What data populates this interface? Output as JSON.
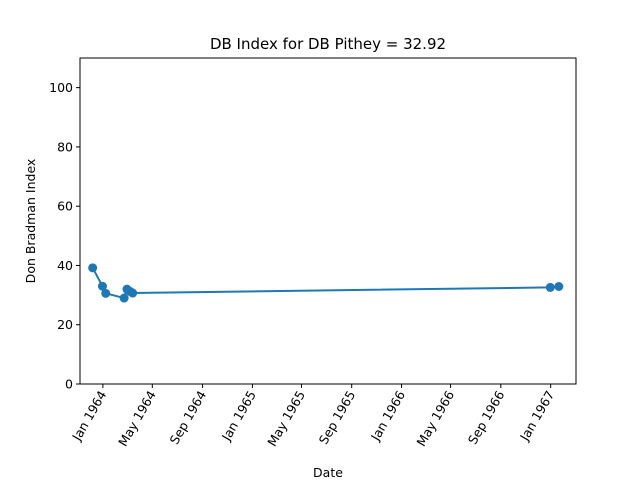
{
  "chart_data": {
    "type": "line",
    "title": "DB Index for DB Pithey = 32.92",
    "xlabel": "Date",
    "ylabel": "Don Bradman Index",
    "xlim": [
      "1963-11-06",
      "1967-03-04"
    ],
    "ylim": [
      0,
      110
    ],
    "x_ticks": [
      {
        "label": "Jan 1964",
        "date": "1964-01-01"
      },
      {
        "label": "May 1964",
        "date": "1964-05-01"
      },
      {
        "label": "Sep 1964",
        "date": "1964-09-01"
      },
      {
        "label": "Jan 1965",
        "date": "1965-01-01"
      },
      {
        "label": "May 1965",
        "date": "1965-05-01"
      },
      {
        "label": "Sep 1965",
        "date": "1965-09-01"
      },
      {
        "label": "Jan 1966",
        "date": "1966-01-01"
      },
      {
        "label": "May 1966",
        "date": "1966-05-01"
      },
      {
        "label": "Sep 1966",
        "date": "1966-09-01"
      },
      {
        "label": "Jan 1967",
        "date": "1967-01-01"
      }
    ],
    "y_ticks": [
      0,
      20,
      40,
      60,
      80,
      100
    ],
    "grid": false,
    "series": [
      {
        "color": "#1f77b4",
        "points": [
          {
            "x": "1963-12-07",
            "y": 39.2
          },
          {
            "x": "1963-12-31",
            "y": 33.0
          },
          {
            "x": "1964-01-08",
            "y": 30.6
          },
          {
            "x": "1964-02-22",
            "y": 29.0
          },
          {
            "x": "1964-02-29",
            "y": 32.0
          },
          {
            "x": "1964-03-08",
            "y": 31.2
          },
          {
            "x": "1964-03-14",
            "y": 30.7
          },
          {
            "x": "1966-12-31",
            "y": 32.6
          },
          {
            "x": "1967-01-21",
            "y": 32.9
          }
        ]
      }
    ]
  }
}
